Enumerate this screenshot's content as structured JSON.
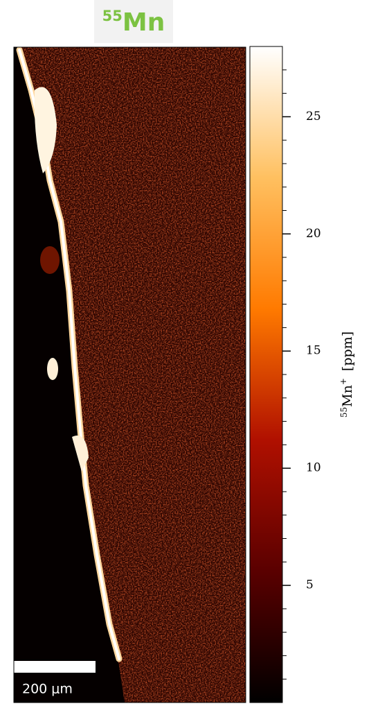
{
  "chart_data": {
    "type": "heatmap",
    "title": {
      "isotope": "55",
      "element": "Mn"
    },
    "title_color": "#7cc242",
    "colorbar_label": {
      "isotope": "55",
      "element": "Mn",
      "charge": "+",
      "unit": "[ppm]"
    },
    "clim": [
      0,
      28
    ],
    "cticks": [
      5,
      10,
      15,
      20,
      25
    ],
    "cminor_ticks": [
      1,
      2,
      3,
      4,
      6,
      7,
      8,
      9,
      11,
      12,
      13,
      14,
      16,
      17,
      18,
      19,
      21,
      22,
      23,
      24,
      26,
      27
    ],
    "colormap": [
      "#000000",
      "#5a0000",
      "#b01000",
      "#ff7a00",
      "#ffc060",
      "#ffffff"
    ],
    "scale_bar": "200 μm"
  }
}
